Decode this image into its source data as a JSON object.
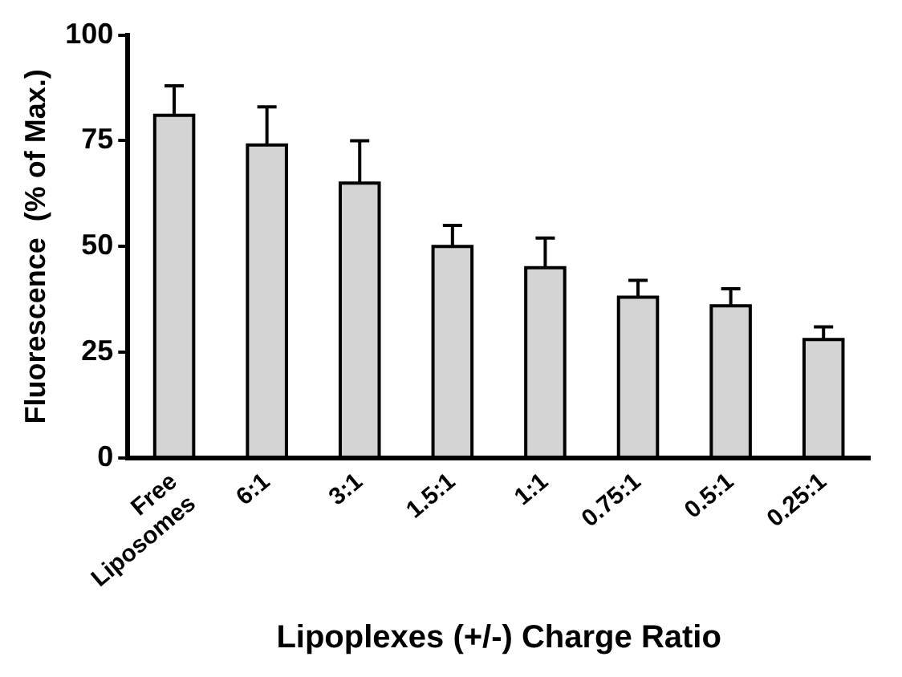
{
  "chart_data": {
    "type": "bar",
    "xlabel": "Lipoplexes (+/-) Charge Ratio",
    "ylabel": "Fluorescence  (% of Max.)",
    "categories": [
      "Free\nLiposomes",
      "6:1",
      "3:1",
      "1.5:1",
      "1:1",
      "0.75:1",
      "0.5:1",
      "0.25:1"
    ],
    "values": [
      81,
      74,
      65,
      50,
      45,
      38,
      36,
      28
    ],
    "errors": [
      [
        81,
        88
      ],
      [
        74,
        83
      ],
      [
        65,
        75
      ],
      [
        50,
        55
      ],
      [
        45,
        52
      ],
      [
        38,
        42
      ],
      [
        36,
        40
      ],
      [
        28,
        31
      ]
    ],
    "color": "#d4d4d4",
    "ylim": [
      0,
      100
    ],
    "yticks": [
      0,
      25,
      50,
      75,
      100
    ],
    "grid": false,
    "legend": false
  }
}
